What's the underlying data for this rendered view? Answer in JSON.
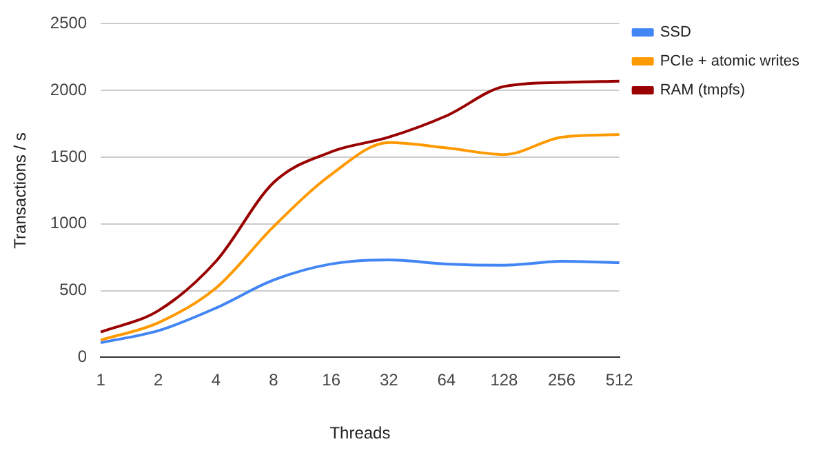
{
  "chart_data": {
    "type": "line",
    "xlabel": "Threads",
    "ylabel": "Transactions / s",
    "categories": [
      "1",
      "2",
      "4",
      "8",
      "16",
      "32",
      "64",
      "128",
      "256",
      "512"
    ],
    "series": [
      {
        "name": "SSD",
        "color": "#4285f4",
        "values": [
          110,
          200,
          370,
          580,
          700,
          730,
          700,
          690,
          720,
          710
        ]
      },
      {
        "name": "PCIe + atomic writes",
        "color": "#ff9900",
        "values": [
          130,
          260,
          520,
          980,
          1370,
          1610,
          1570,
          1520,
          1650,
          1670
        ]
      },
      {
        "name": "RAM (tmpfs)",
        "color": "#990000",
        "values": [
          190,
          350,
          720,
          1310,
          1540,
          1650,
          1810,
          2030,
          2060,
          2070
        ]
      }
    ],
    "ylim": [
      0,
      2500
    ],
    "yticks": [
      0,
      500,
      1000,
      1500,
      2000,
      2500
    ],
    "grid": "y",
    "legend": "right",
    "marker": "none",
    "line_style": "solid"
  }
}
